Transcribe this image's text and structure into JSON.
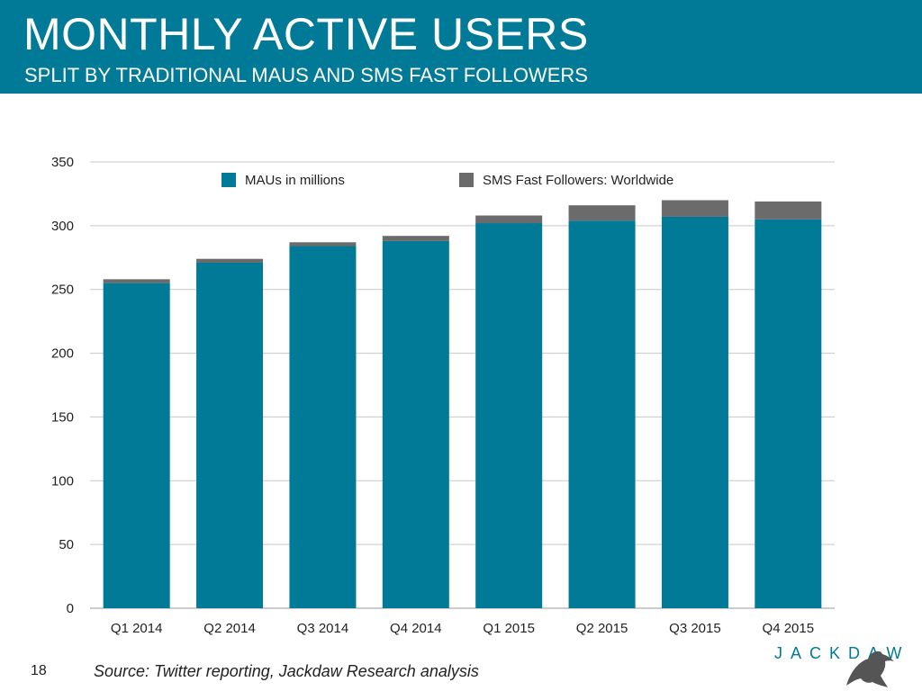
{
  "header": {
    "title": "MONTHLY ACTIVE USERS",
    "subtitle": "SPLIT BY TRADITIONAL MAUS AND SMS FAST FOLLOWERS"
  },
  "footer": {
    "page_number": "18",
    "source": "Source: Twitter reporting, Jackdaw Research analysis",
    "logo_text": "JACKDAW"
  },
  "colors": {
    "header_bg": "#007a96",
    "maus": "#007a96",
    "sms": "#6b6b6b",
    "grid": "#c8c8c8"
  },
  "chart_data": {
    "type": "bar",
    "stacked": true,
    "categories": [
      "Q1 2014",
      "Q2 2014",
      "Q3 2014",
      "Q4 2014",
      "Q1 2015",
      "Q2 2015",
      "Q3 2015",
      "Q4 2015"
    ],
    "series": [
      {
        "name": "MAUs in millions",
        "values": [
          255,
          271,
          284,
          288,
          302,
          304,
          307,
          305
        ]
      },
      {
        "name": "SMS Fast Followers: Worldwide",
        "values": [
          3,
          3,
          3,
          4,
          6,
          12,
          13,
          14
        ]
      }
    ],
    "ylim": [
      0,
      350
    ],
    "yticks": [
      0,
      50,
      100,
      150,
      200,
      250,
      300,
      350
    ],
    "grid": true,
    "legend_position": "top"
  }
}
